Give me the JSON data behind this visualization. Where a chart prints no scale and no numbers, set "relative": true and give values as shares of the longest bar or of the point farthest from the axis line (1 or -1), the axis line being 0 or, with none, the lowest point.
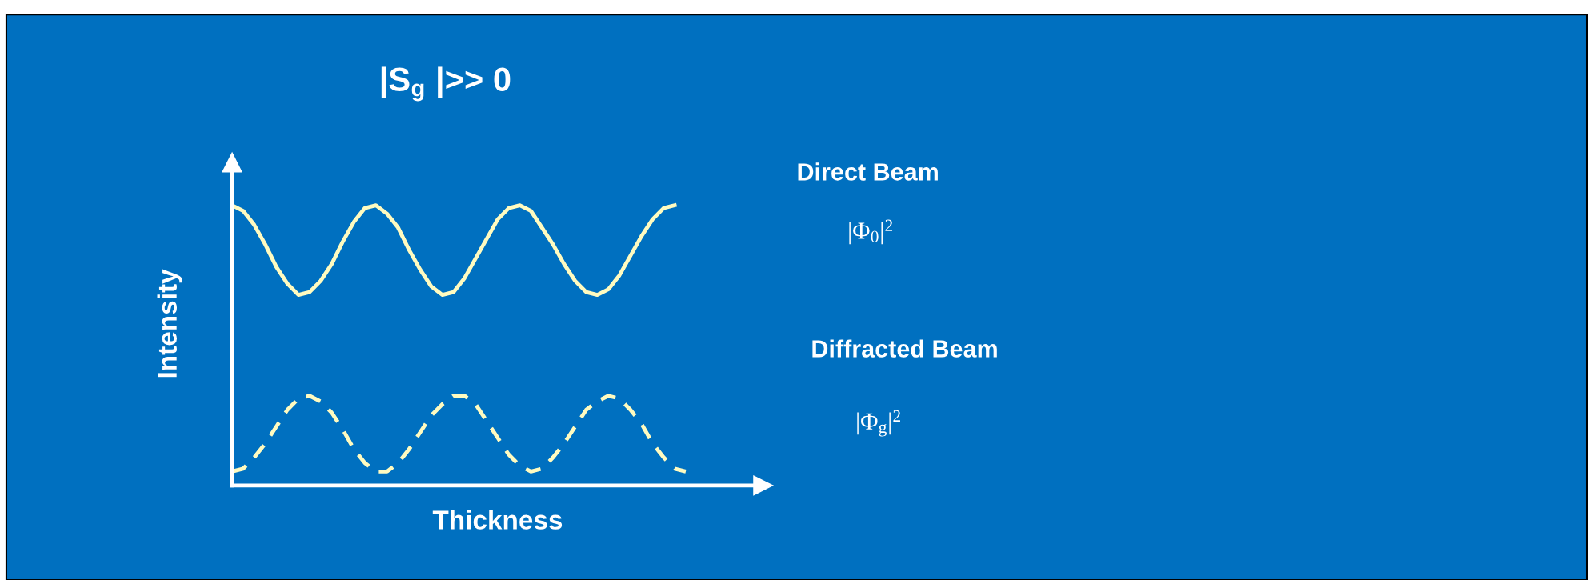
{
  "chart_data": {
    "type": "line",
    "relative": true,
    "title": "|S$_{g}$ |>> 0",
    "xlabel": "Thickness",
    "ylabel": "Intensity",
    "categories": [
      null,
      null,
      null,
      null,
      null,
      null,
      null,
      null,
      null,
      null,
      null,
      null,
      null,
      null,
      null,
      null,
      null,
      null,
      null,
      null,
      null,
      null,
      null,
      null,
      null,
      null,
      null,
      null,
      null,
      null,
      null,
      null,
      null,
      null,
      null,
      null,
      null,
      null,
      null,
      null,
      null,
      null,
      null,
      null,
      null,
      null,
      null,
      null,
      null
    ],
    "series": [
      {
        "name": "Direct Beam",
        "color": "#fffbc0",
        "line_style": "solid",
        "values": [
          1.0,
          0.98,
          0.93,
          0.86,
          0.78,
          0.72,
          0.68,
          0.69,
          0.73,
          0.79,
          0.87,
          0.94,
          0.99,
          1.0,
          0.97,
          0.92,
          0.84,
          0.77,
          0.71,
          0.68,
          0.69,
          0.74,
          0.81,
          0.88,
          0.95,
          0.99,
          1.0,
          0.98,
          0.92,
          0.86,
          0.79,
          0.73,
          0.69,
          0.68,
          0.7,
          0.75,
          0.82,
          0.89,
          0.95,
          0.99,
          1.0,
          null,
          null,
          null,
          null,
          null,
          null,
          null,
          null
        ]
      },
      {
        "name": "Diffracted Beam",
        "color": "#fffbc0",
        "line_style": "dashed",
        "values": [
          0.05,
          0.06,
          0.1,
          0.15,
          0.21,
          0.27,
          0.31,
          0.32,
          0.3,
          0.26,
          0.2,
          0.13,
          0.08,
          0.05,
          0.05,
          0.08,
          0.13,
          0.19,
          0.25,
          0.29,
          0.32,
          0.32,
          0.29,
          0.23,
          0.17,
          0.11,
          0.07,
          0.05,
          0.06,
          0.1,
          0.15,
          0.21,
          0.27,
          0.3,
          0.32,
          0.31,
          0.27,
          0.22,
          0.15,
          0.1,
          0.06,
          0.05,
          null,
          null,
          null,
          null,
          null,
          null,
          null
        ]
      }
    ],
    "annotations": [
      "|Φ$_{0}$|$^{2}$",
      "|Φ$_{g}$|$^{2}$"
    ],
    "marker": "none",
    "legend": false,
    "tick_labels": false
  }
}
